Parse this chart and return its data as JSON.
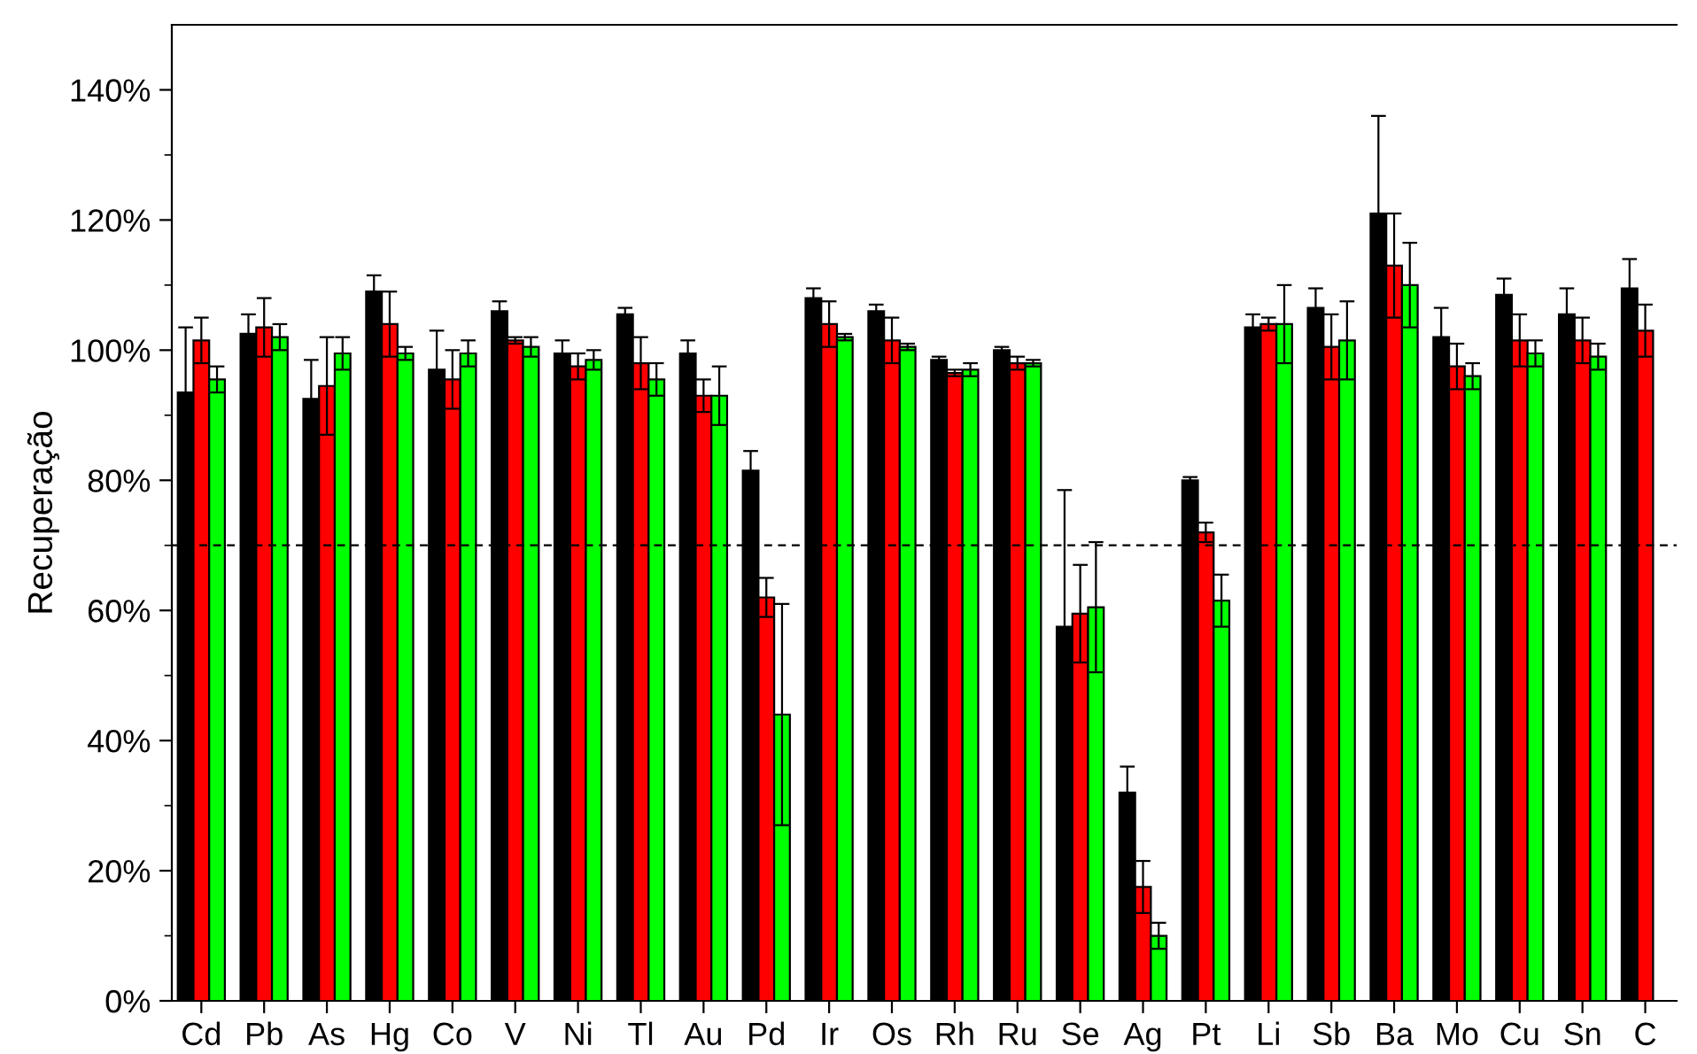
{
  "chart_data": {
    "type": "bar",
    "ylabel": "Recuperação",
    "categories": [
      "Cd",
      "Pb",
      "As",
      "Hg",
      "Co",
      "V",
      "Ni",
      "Tl",
      "Au",
      "Pd",
      "Ir",
      "Os",
      "Rh",
      "Ru",
      "Se",
      "Ag",
      "Pt",
      "Li",
      "Sb",
      "Ba",
      "Mo",
      "Cu",
      "Sn",
      "C"
    ],
    "series": [
      {
        "color": "#000000",
        "values": [
          93.5,
          102.5,
          92.5,
          109,
          97,
          106,
          99.5,
          105.5,
          99.5,
          81.5,
          108,
          106,
          98.5,
          100,
          57.5,
          32,
          80,
          103.5,
          106.5,
          121,
          102,
          108.5,
          105.5,
          109.5
        ],
        "errors": [
          10,
          3,
          6,
          2.5,
          6,
          1.5,
          2,
          1,
          2,
          3,
          1.5,
          1,
          0.5,
          0.5,
          21,
          4,
          0.5,
          2,
          3,
          15,
          4.5,
          2.5,
          4,
          4.5
        ]
      },
      {
        "color": "#ff0000",
        "values": [
          101.5,
          103.5,
          94.5,
          104,
          95.5,
          101.5,
          97.5,
          98,
          93,
          62,
          104,
          101.5,
          96.5,
          98,
          59.5,
          17.5,
          72,
          104,
          100.5,
          113,
          97.5,
          101.5,
          101.5,
          103
        ],
        "errors": [
          3.5,
          4.5,
          7.5,
          5,
          4.5,
          0.5,
          2,
          4,
          2.5,
          3,
          3.5,
          3.5,
          0.5,
          1,
          7.5,
          4,
          1.5,
          1,
          5,
          8,
          3.5,
          4,
          3.5,
          4
        ]
      },
      {
        "color": "#00ff00",
        "values": [
          95.5,
          102,
          99.5,
          99.5,
          99.5,
          100.5,
          98.5,
          95.5,
          93,
          44,
          102,
          100.5,
          97,
          98,
          60.5,
          10,
          61.5,
          104,
          101.5,
          110,
          96,
          99.5,
          99,
          null
        ],
        "errors": [
          2,
          2,
          2.5,
          1,
          2,
          1.5,
          1.5,
          2.5,
          4.5,
          17,
          0.5,
          0.5,
          1,
          0.5,
          10,
          2,
          4,
          6,
          6,
          6.5,
          2,
          2,
          2,
          null
        ]
      }
    ],
    "ylim": [
      0,
      150
    ],
    "yticks": [
      {
        "value": 0,
        "label": "0%"
      },
      {
        "value": 10,
        "label": null
      },
      {
        "value": 20,
        "label": "20%"
      },
      {
        "value": 30,
        "label": null
      },
      {
        "value": 40,
        "label": "40%"
      },
      {
        "value": 50,
        "label": null
      },
      {
        "value": 60,
        "label": "60%"
      },
      {
        "value": 70,
        "label": null
      },
      {
        "value": 80,
        "label": "80%"
      },
      {
        "value": 90,
        "label": null
      },
      {
        "value": 100,
        "label": "100%"
      },
      {
        "value": 110,
        "label": null
      },
      {
        "value": 120,
        "label": "120%"
      },
      {
        "value": 130,
        "label": null
      },
      {
        "value": 140,
        "label": "140%"
      }
    ],
    "ref_lines": [
      {
        "axis": "y",
        "value": 70,
        "label": null,
        "color": "#000000",
        "line_style": "dashed"
      }
    ],
    "grid": false,
    "legend": false
  }
}
